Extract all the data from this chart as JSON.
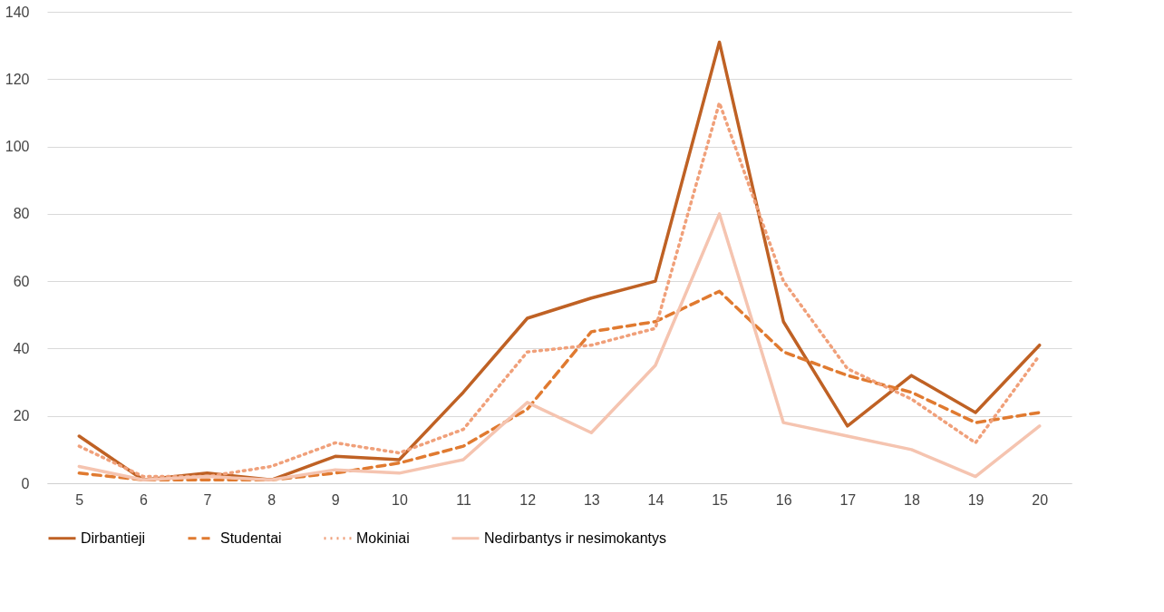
{
  "chart_data": {
    "type": "line",
    "categories": [
      "5",
      "6",
      "7",
      "8",
      "9",
      "10",
      "11",
      "12",
      "13",
      "14",
      "15",
      "16",
      "17",
      "18",
      "19",
      "20"
    ],
    "series": [
      {
        "name": "Dirbantieji",
        "color": "#bf6124",
        "line_style": "solid",
        "values": [
          14,
          1,
          3,
          1,
          8,
          7,
          27,
          49,
          55,
          60,
          131,
          48,
          17,
          32,
          21,
          41
        ]
      },
      {
        "name": "Studentai",
        "color": "#e07a30",
        "line_style": "dashed",
        "values": [
          3,
          1,
          1,
          1,
          3,
          6,
          11,
          22,
          45,
          48,
          57,
          39,
          32,
          27,
          18,
          21
        ]
      },
      {
        "name": "Mokiniai",
        "color": "#f0a07a",
        "line_style": "dotted",
        "values": [
          11,
          2,
          2,
          5,
          12,
          9,
          16,
          39,
          41,
          46,
          113,
          60,
          34,
          25,
          12,
          38
        ]
      },
      {
        "name": "Nedirbantys ir nesimokantys",
        "color": "#f5c4b0",
        "line_style": "solid",
        "values": [
          5,
          1,
          2,
          1,
          4,
          3,
          7,
          24,
          15,
          35,
          80,
          18,
          14,
          10,
          2,
          17
        ]
      }
    ],
    "ylim": [
      0,
      140
    ],
    "yticks": [
      0,
      20,
      40,
      60,
      80,
      100,
      120,
      140
    ],
    "grid": "y",
    "legend": "bottom",
    "marker": "none"
  }
}
